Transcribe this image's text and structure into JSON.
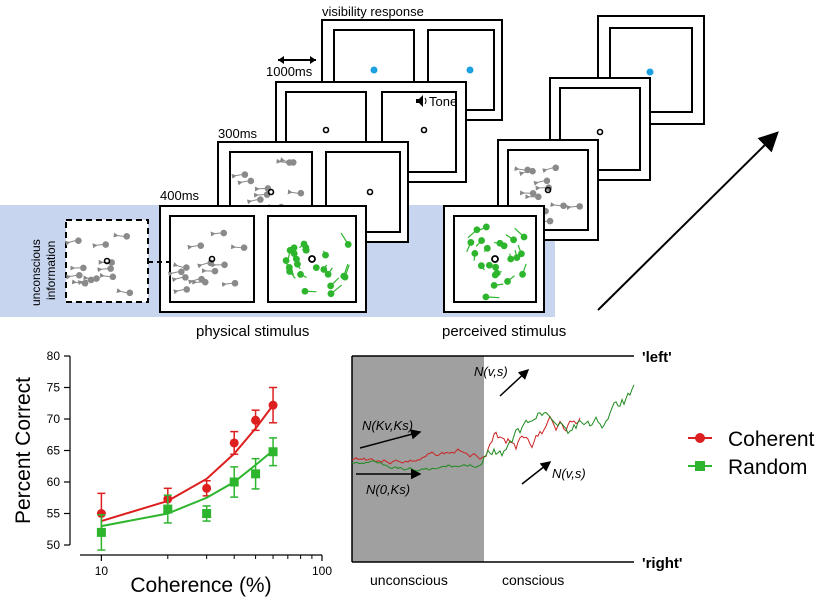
{
  "diagram": {
    "labels": {
      "visibility_response": "visibility response",
      "t1000": "1000ms",
      "tone": "Tone",
      "t300": "300ms",
      "t400": "400ms",
      "unconscious_line1": "unconscious",
      "unconscious_line2": "information",
      "physical_stimulus": "physical stimulus",
      "perceived_stimulus": "perceived stimulus"
    },
    "colors": {
      "coherent": "#dd1f1f",
      "random": "#2db52d",
      "response_dot": "#1ea0e0",
      "highlight": "#c8d5ee",
      "shade": "#a0a0a0"
    }
  },
  "chart_data": [
    {
      "type": "scatter",
      "xlabel": "Coherence (%)",
      "ylabel": "Percent Correct",
      "xscale": "log",
      "xlim": [
        8,
        100
      ],
      "ylim": [
        50,
        80
      ],
      "xticks": [
        10,
        100
      ],
      "yticks": [
        50,
        55,
        60,
        65,
        70,
        75,
        80
      ],
      "legend_position": "right",
      "series": [
        {
          "name": "Coherent",
          "marker": "circle",
          "color": "#dd1f1f",
          "x": [
            10,
            20,
            30,
            40,
            50,
            60
          ],
          "y": [
            55,
            57.3,
            59,
            66.2,
            69.8,
            72.2
          ],
          "err": [
            3.2,
            1.7,
            1.2,
            1.8,
            1.6,
            2.8
          ],
          "fit_x": [
            10,
            20,
            30,
            40,
            50,
            60
          ],
          "fit_y": [
            53.8,
            57.0,
            60.5,
            64.5,
            68.5,
            72.2
          ]
        },
        {
          "name": "Random",
          "marker": "square",
          "color": "#2db52d",
          "x": [
            10,
            20,
            30,
            40,
            50,
            60
          ],
          "y": [
            52,
            55.7,
            55,
            60,
            61.3,
            64.8
          ],
          "err": [
            2.8,
            2.2,
            1.2,
            2.4,
            2.4,
            2.2
          ],
          "fit_x": [
            10,
            20,
            30,
            40,
            50,
            60
          ],
          "fit_y": [
            53.0,
            55.0,
            57.5,
            60.0,
            62.7,
            65.0
          ]
        }
      ]
    },
    {
      "type": "line",
      "top_label": "'left'",
      "bottom_label": "'right'",
      "region_labels": [
        "unconscious",
        "conscious"
      ],
      "annotations": [
        "N(Kv,Ks)",
        "N(0,Ks)",
        "N(v,s)",
        "N(v,s)"
      ]
    }
  ]
}
